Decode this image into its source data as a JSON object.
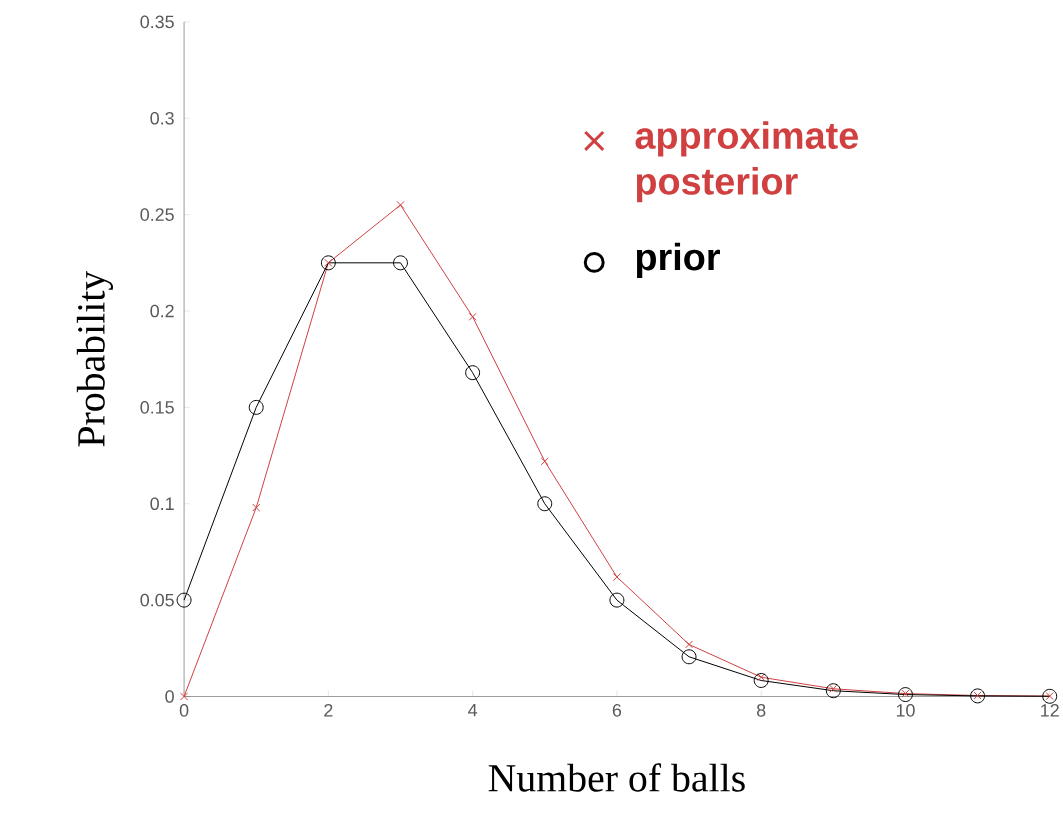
{
  "chart_data": {
    "type": "line",
    "xlabel": "Number of balls",
    "ylabel": "Probability",
    "x": [
      0,
      1,
      2,
      3,
      4,
      5,
      6,
      7,
      8,
      9,
      10,
      11,
      12
    ],
    "series": [
      {
        "name": "approximate posterior",
        "color": "#d04040",
        "marker": "cross",
        "values": [
          0,
          0.098,
          0.225,
          0.255,
          0.197,
          0.122,
          0.062,
          0.027,
          0.01,
          0.004,
          0.0015,
          0.0005,
          0.0002
        ]
      },
      {
        "name": "prior",
        "color": "#000000",
        "marker": "circle",
        "values": [
          0.05,
          0.15,
          0.225,
          0.225,
          0.168,
          0.1,
          0.05,
          0.0206,
          0.0083,
          0.003,
          0.001,
          0.0003,
          0.0001
        ]
      }
    ],
    "xlim": [
      0,
      12
    ],
    "xticks": [
      0,
      2,
      4,
      6,
      8,
      10,
      12
    ],
    "ylim": [
      0,
      0.35
    ],
    "yticks": [
      0,
      0.05,
      0.1,
      0.15,
      0.2,
      0.25,
      0.3,
      0.35
    ],
    "grid": false,
    "legend": "top right"
  }
}
